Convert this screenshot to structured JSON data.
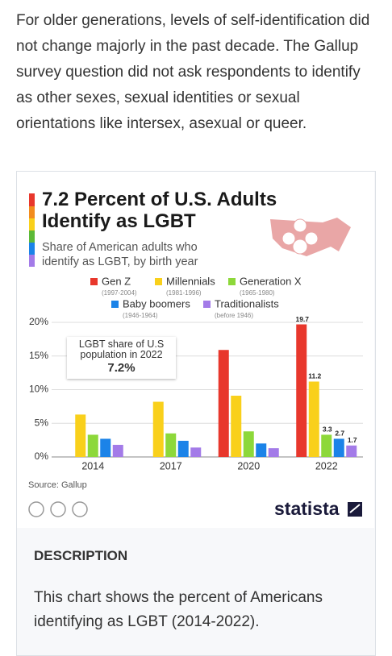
{
  "intro": "For older generations, levels of self-identification did not change majorly in the past decade. The Gallup survey question did not ask respondents to identify as other sexes, sexual identities or sexual orientations like intersex, asexual or queer.",
  "chart_data": {
    "type": "bar",
    "title": "7.2 Percent of U.S. Adults Identify as LGBT",
    "subtitle": "Share of American adults who identify as LGBT, by birth year",
    "annotation": {
      "text": "LGBT share of U.S population in 2022",
      "value": "7.2%"
    },
    "categories": [
      "2014",
      "2017",
      "2020",
      "2022"
    ],
    "series": [
      {
        "name": "Gen Z",
        "years": "(1997-2004)",
        "color": "#e8372c",
        "values": [
          null,
          null,
          15.9,
          19.7
        ],
        "value_labels": [
          null,
          null,
          null,
          "19.7"
        ]
      },
      {
        "name": "Millennials",
        "years": "(1981-1996)",
        "color": "#f9d01b",
        "values": [
          6.3,
          8.2,
          9.1,
          11.2
        ],
        "value_labels": [
          null,
          null,
          null,
          "11.2"
        ]
      },
      {
        "name": "Generation X",
        "years": "(1965-1980)",
        "color": "#8dd83a",
        "values": [
          3.3,
          3.5,
          3.8,
          3.3
        ],
        "value_labels": [
          null,
          null,
          null,
          "3.3"
        ]
      },
      {
        "name": "Baby boomers",
        "years": "(1946-1964)",
        "color": "#1b83e8",
        "values": [
          2.7,
          2.4,
          2.0,
          2.7
        ],
        "value_labels": [
          null,
          null,
          null,
          "2.7"
        ]
      },
      {
        "name": "Traditionalists",
        "years": "(before 1946)",
        "color": "#a37be8",
        "values": [
          1.8,
          1.4,
          1.3,
          1.7
        ],
        "value_labels": [
          null,
          null,
          null,
          "1.7"
        ]
      }
    ],
    "ylim": [
      0,
      20
    ],
    "yticks": [
      {
        "value": 0,
        "label": "0%"
      },
      {
        "value": 5,
        "label": "5%"
      },
      {
        "value": 10,
        "label": "10%"
      },
      {
        "value": 15,
        "label": "15%"
      },
      {
        "value": 20,
        "label": "20%"
      }
    ],
    "grid": true,
    "source": "Source: Gallup",
    "brand": "statista"
  },
  "description": {
    "heading": "DESCRIPTION",
    "text": "This chart shows the percent of Americans identifying as LGBT (2014-2022)."
  }
}
